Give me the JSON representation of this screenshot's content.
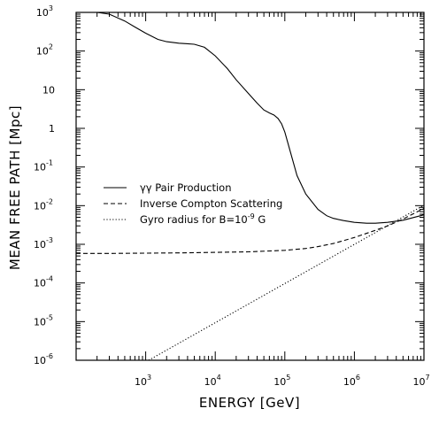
{
  "chart_data": {
    "type": "line",
    "xlabel": "ENERGY [GeV]",
    "ylabel": "MEAN FREE PATH [Mpc]",
    "xscale": "log",
    "yscale": "log",
    "xlim": [
      100,
      10000000
    ],
    "ylim": [
      1e-06,
      1000
    ],
    "grid": false,
    "legend_position": "center-left",
    "x_ticks": [
      {
        "mant": "10",
        "exp": "3",
        "value": 1000
      },
      {
        "mant": "10",
        "exp": "4",
        "value": 10000
      },
      {
        "mant": "10",
        "exp": "5",
        "value": 100000
      },
      {
        "mant": "10",
        "exp": "6",
        "value": 1000000
      },
      {
        "mant": "10",
        "exp": "7",
        "value": 10000000
      }
    ],
    "y_ticks": [
      {
        "mant": "10",
        "exp": "-6",
        "value": 1e-06
      },
      {
        "mant": "10",
        "exp": "-5",
        "value": 1e-05
      },
      {
        "mant": "10",
        "exp": "-4",
        "value": 0.0001
      },
      {
        "mant": "10",
        "exp": "-3",
        "value": 0.001
      },
      {
        "mant": "10",
        "exp": "-2",
        "value": 0.01
      },
      {
        "mant": "10",
        "exp": "-1",
        "value": 0.1
      },
      {
        "mant": "1",
        "exp": "",
        "value": 1
      },
      {
        "mant": "10",
        "exp": "",
        "value": 10
      },
      {
        "mant": "10",
        "exp": "2",
        "value": 100
      },
      {
        "mant": "10",
        "exp": "3",
        "value": 1000
      }
    ],
    "series": [
      {
        "name": "γγ Pair Production",
        "dash": "solid",
        "x": [
          200,
          300,
          500,
          700,
          1000,
          1500,
          2000,
          3000,
          4000,
          5000,
          7000,
          10000,
          15000,
          20000,
          30000,
          40000,
          50000,
          60000,
          70000,
          80000,
          90000,
          100000,
          120000,
          150000,
          200000,
          300000,
          400000,
          500000,
          700000,
          1000000,
          1500000,
          2000000,
          3000000,
          5000000,
          10000000
        ],
        "y": [
          1000,
          900,
          600,
          420,
          290,
          200,
          175,
          160,
          155,
          150,
          125,
          75,
          35,
          18,
          8,
          4.5,
          3,
          2.5,
          2.2,
          1.8,
          1.3,
          0.8,
          0.25,
          0.06,
          0.02,
          0.008,
          0.0055,
          0.0047,
          0.0041,
          0.0037,
          0.0035,
          0.0035,
          0.0037,
          0.0042,
          0.0058
        ]
      },
      {
        "name": "Inverse Compton Scattering",
        "dash": "dashed",
        "x": [
          100,
          300,
          1000,
          3000,
          10000,
          30000,
          100000,
          200000,
          300000,
          500000,
          1000000,
          2000000,
          3000000,
          5000000,
          10000000
        ],
        "y": [
          0.00058,
          0.00058,
          0.00059,
          0.0006,
          0.00062,
          0.00064,
          0.0007,
          0.00078,
          0.00087,
          0.00105,
          0.0015,
          0.0023,
          0.003,
          0.0045,
          0.0085
        ]
      },
      {
        "name": "Gyro radius for B=10⁻⁹ G",
        "dash": "dotted",
        "x": [
          1100,
          10000000
        ],
        "y": [
          1e-06,
          0.0103
        ]
      }
    ],
    "legend": {
      "entries": [
        {
          "text": "γγ Pair Production",
          "dash": "solid"
        },
        {
          "text": "Inverse Compton Scattering",
          "dash": "dashed"
        },
        {
          "text": "Gyro radius for B=10",
          "sup": "-9",
          "tail": " G",
          "dash": "dotted"
        }
      ]
    }
  }
}
